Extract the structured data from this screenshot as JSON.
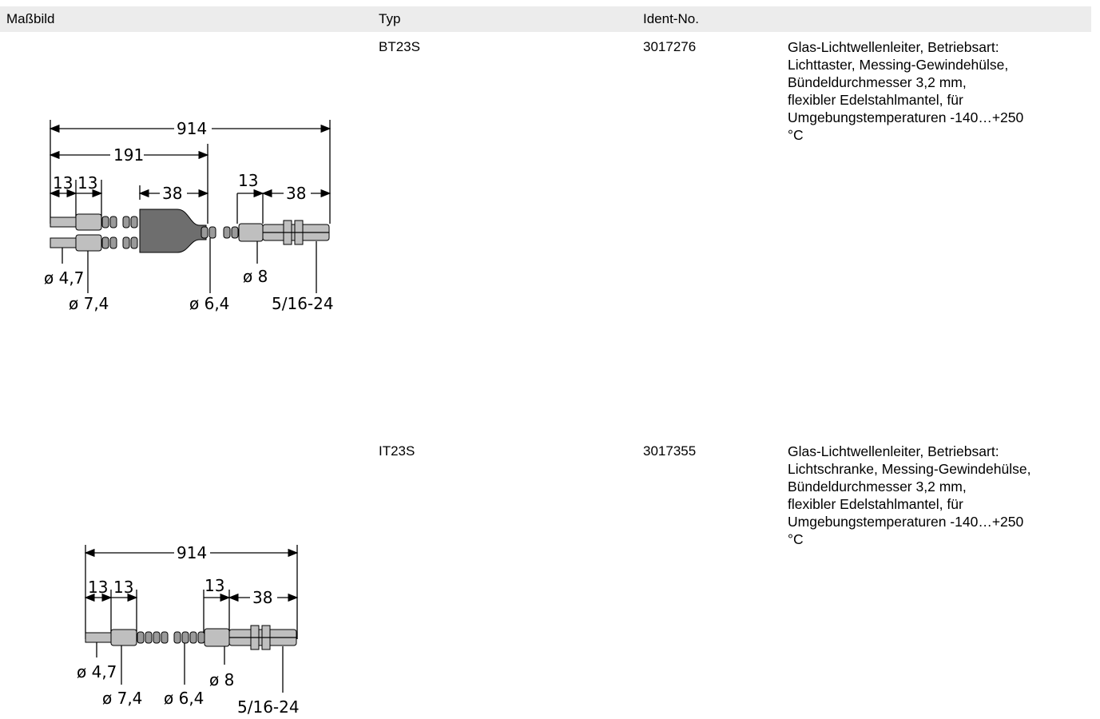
{
  "header": {
    "col_drawing": "Maßbild",
    "col_type": "Typ",
    "col_ident": "Ident-No."
  },
  "products": [
    {
      "type": "BT23S",
      "ident": "3017276",
      "description_lines": [
        "Glas-Lichtwellenleiter, Betriebsart:",
        "Lichttaster, Messing-Gewindehülse,",
        "Bündeldurchmesser 3,2 mm,",
        "flexibler Edelstahlmantel, für",
        "Umgebungstemperaturen -140…+250",
        "°C"
      ],
      "drawing": {
        "total": "914",
        "split": "191",
        "seg_a": "13",
        "seg_b": "13",
        "seg_c": "38",
        "seg_d": "13",
        "seg_e": "38",
        "dia_tip": "ø 4,7",
        "dia_sleeve": "ø 7,4",
        "dia_cable": "ø 6,4",
        "dia_ferrule": "ø 8",
        "thread": "5/16-24"
      }
    },
    {
      "type": "IT23S",
      "ident": "3017355",
      "description_lines": [
        "Glas-Lichtwellenleiter, Betriebsart:",
        "Lichtschranke, Messing-Gewindehülse,",
        "Bündeldurchmesser 3,2 mm,",
        "flexibler Edelstahlmantel, für",
        "Umgebungstemperaturen -140…+250",
        "°C"
      ],
      "drawing": {
        "total": "914",
        "seg_a": "13",
        "seg_b": "13",
        "seg_d": "13",
        "seg_e": "38",
        "dia_tip": "ø 4,7",
        "dia_sleeve": "ø 7,4",
        "dia_cable": "ø 6,4",
        "dia_ferrule": "ø 8",
        "thread": "5/16-24"
      }
    }
  ]
}
